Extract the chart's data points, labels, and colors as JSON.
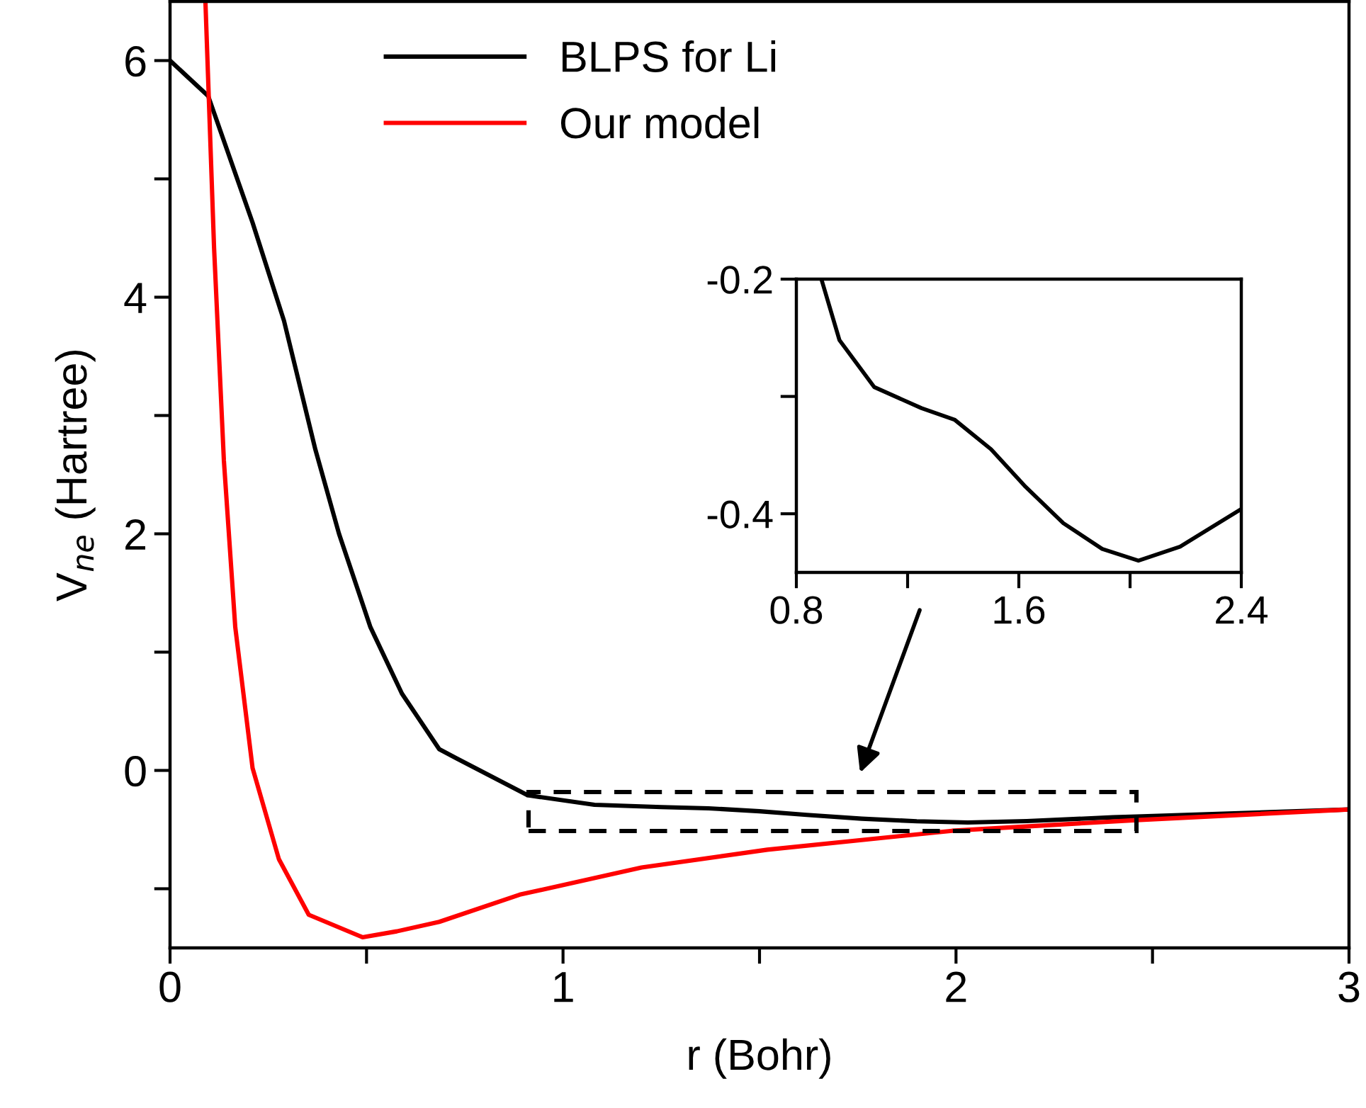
{
  "chart_data": [
    {
      "type": "line",
      "xlabel": "r (Bohr)",
      "ylabel": "V$_{ne}$ (Hartree)",
      "xlim": [
        0,
        3
      ],
      "ylim": [
        -1.5,
        6.5
      ],
      "xticks": [
        0,
        {
          "value": 0.5,
          "label": null
        },
        1,
        {
          "value": 1.5,
          "label": null
        },
        2,
        {
          "value": 2.5,
          "label": null
        },
        3
      ],
      "yticks": [
        {
          "value": -1,
          "label": null
        },
        0,
        {
          "value": 1,
          "label": null
        },
        2,
        {
          "value": 3,
          "label": null
        },
        4,
        {
          "value": 5,
          "label": null
        },
        6
      ],
      "legend": "top left",
      "grid": false,
      "line_style": "solid",
      "marker": "none",
      "series": [
        {
          "name": "BLPS for Li",
          "color": "#000000",
          "x": [
            0,
            0.097,
            0.21,
            0.29,
            0.37,
            0.43,
            0.51,
            0.59,
            0.685,
            0.73,
            0.91,
            1.08,
            1.25,
            1.37,
            1.5,
            1.62,
            1.76,
            1.9,
            2.03,
            2.18,
            2.4,
            2.46,
            3.0
          ],
          "values": [
            6.0,
            5.7,
            4.63,
            3.8,
            2.71,
            2.0,
            1.21,
            0.65,
            0.18,
            0.1,
            -0.21,
            -0.29,
            -0.31,
            -0.32,
            -0.345,
            -0.376,
            -0.408,
            -0.43,
            -0.44,
            -0.428,
            -0.396,
            -0.39,
            -0.33
          ]
        },
        {
          "name": "Our model",
          "color": "#ff0000",
          "x": [
            0.09,
            0.112,
            0.137,
            0.166,
            0.21,
            0.277,
            0.353,
            0.49,
            0.577,
            0.685,
            0.89,
            1.2,
            1.52,
            1.99,
            2.46,
            3.0
          ],
          "values": [
            6.5,
            4.42,
            2.62,
            1.21,
            0.02,
            -0.75,
            -1.22,
            -1.41,
            -1.36,
            -1.28,
            -1.05,
            -0.82,
            -0.67,
            -0.51,
            -0.42,
            -0.33
          ]
        }
      ]
    },
    {
      "type": "line",
      "xlim": [
        0.8,
        2.4
      ],
      "ylim": [
        -0.45,
        -0.2
      ],
      "xticks": [
        0.8,
        {
          "value": 1.2,
          "label": null
        },
        1.6,
        {
          "value": 2.0,
          "label": null
        },
        2.4
      ],
      "yticks": [
        -0.2,
        {
          "value": -0.3,
          "label": null
        },
        -0.4
      ],
      "grid": false,
      "line_style": "solid",
      "marker": "none",
      "series": [
        {
          "color": "#000000",
          "x": [
            0.89,
            0.955,
            1.08,
            1.25,
            1.37,
            1.5,
            1.62,
            1.76,
            1.9,
            2.03,
            2.18,
            2.4
          ],
          "values": [
            -0.2,
            -0.252,
            -0.292,
            -0.31,
            -0.32,
            -0.345,
            -0.376,
            -0.408,
            -0.43,
            -0.44,
            -0.428,
            -0.396
          ]
        }
      ]
    }
  ]
}
